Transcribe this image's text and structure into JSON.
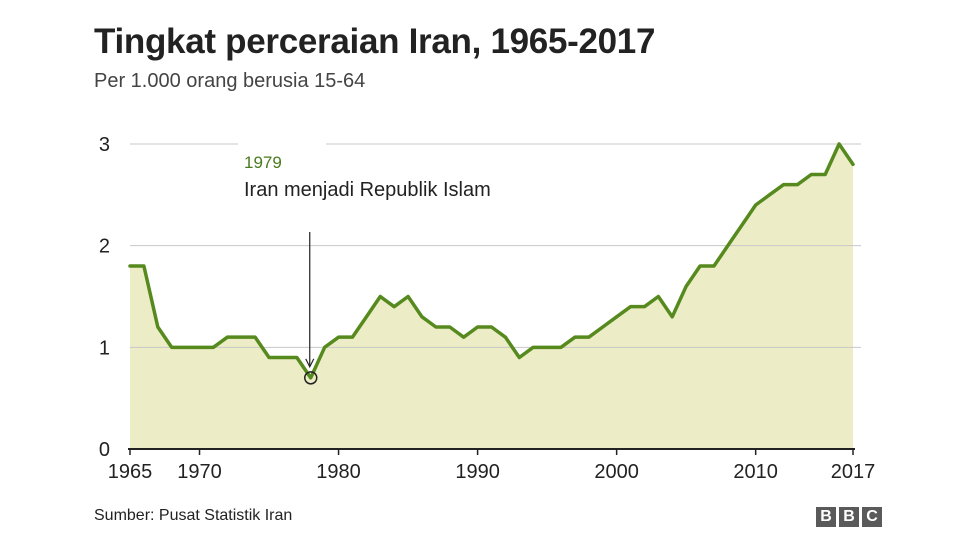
{
  "header": {
    "title": "Tingkat perceraian Iran, 1965-2017",
    "subtitle": "Per 1.000 orang berusia 15-64"
  },
  "footer": {
    "source": "Sumber: Pusat Statistik Iran",
    "logo_letters": [
      "B",
      "B",
      "C"
    ]
  },
  "colors": {
    "line": "#568a1e",
    "area": "#ecedc6",
    "grid": "#c8c8c8",
    "axis": "#222222",
    "annotation_year": "#4a7a1e"
  },
  "chart_data": {
    "type": "area",
    "title": "Tingkat perceraian Iran, 1965-2017",
    "subtitle": "Per 1.000 orang berusia 15-64",
    "xlabel": "",
    "ylabel": "",
    "xlim": [
      1965,
      2017
    ],
    "ylim": [
      0,
      3
    ],
    "x_ticks": [
      1965,
      1970,
      1980,
      1990,
      2000,
      2010,
      2017
    ],
    "y_ticks": [
      0,
      1,
      2,
      3
    ],
    "grid": "horizontal",
    "series": [
      {
        "x": [
          1965,
          1966,
          1967,
          1968,
          1969,
          1970,
          1971,
          1972,
          1973,
          1974,
          1975,
          1976,
          1977,
          1978,
          1979,
          1980,
          1981,
          1982,
          1983,
          1984,
          1985,
          1986,
          1987,
          1988,
          1989,
          1990,
          1991,
          1992,
          1993,
          1994,
          1995,
          1996,
          1997,
          1998,
          1999,
          2000,
          2001,
          2002,
          2003,
          2004,
          2005,
          2006,
          2007,
          2008,
          2009,
          2010,
          2011,
          2012,
          2013,
          2014,
          2015,
          2016,
          2017
        ],
        "values": [
          1.8,
          1.8,
          1.2,
          1.0,
          1.0,
          1.0,
          1.0,
          1.1,
          1.1,
          1.1,
          0.9,
          0.9,
          0.9,
          0.7,
          1.0,
          1.1,
          1.1,
          1.3,
          1.5,
          1.4,
          1.5,
          1.3,
          1.2,
          1.2,
          1.1,
          1.2,
          1.2,
          1.1,
          0.9,
          1.0,
          1.0,
          1.0,
          1.1,
          1.1,
          1.2,
          1.3,
          1.4,
          1.4,
          1.5,
          1.3,
          1.6,
          1.8,
          1.8,
          2.0,
          2.2,
          2.4,
          2.5,
          2.6,
          2.6,
          2.7,
          2.7,
          3.0,
          2.8
        ]
      }
    ],
    "annotation": {
      "year_label": "1979",
      "text": "Iran menjadi Republik Islam",
      "x": 1978,
      "y": 0.7
    }
  }
}
